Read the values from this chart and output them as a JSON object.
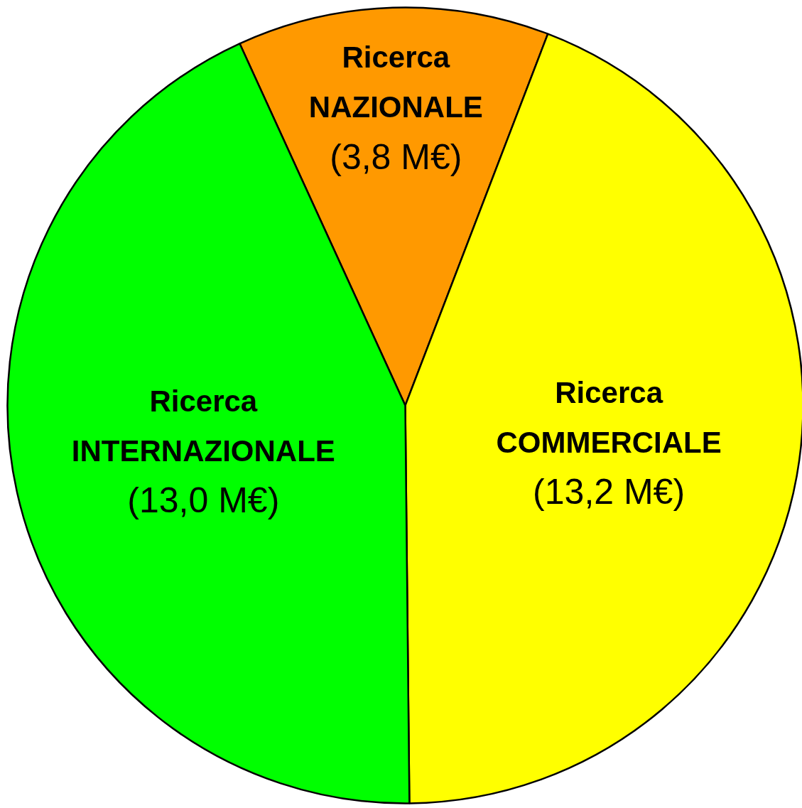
{
  "chart_data": {
    "type": "pie",
    "categories": [
      "Ricerca\nNAZIONALE",
      "Ricerca\nCOMMERCIALE",
      "Ricerca\nINTERNAZIONALE"
    ],
    "values": [
      3.8,
      13.2,
      13.0
    ],
    "colors": [
      "#ff9900",
      "#ffff00",
      "#00ff00"
    ],
    "value_labels": [
      "(3,8 M€)",
      "(13,2 M€)",
      "(13,0 M€)"
    ],
    "legend": false
  }
}
